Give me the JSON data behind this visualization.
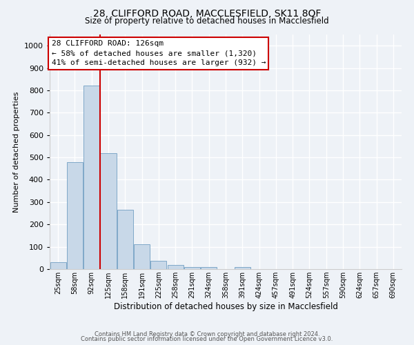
{
  "title1": "28, CLIFFORD ROAD, MACCLESFIELD, SK11 8QF",
  "title2": "Size of property relative to detached houses in Macclesfield",
  "xlabel": "Distribution of detached houses by size in Macclesfield",
  "ylabel": "Number of detached properties",
  "bar_labels": [
    "25sqm",
    "58sqm",
    "92sqm",
    "125sqm",
    "158sqm",
    "191sqm",
    "225sqm",
    "258sqm",
    "291sqm",
    "324sqm",
    "358sqm",
    "391sqm",
    "424sqm",
    "457sqm",
    "491sqm",
    "524sqm",
    "557sqm",
    "590sqm",
    "624sqm",
    "657sqm",
    "690sqm"
  ],
  "bar_values": [
    30,
    480,
    820,
    520,
    265,
    110,
    38,
    18,
    10,
    8,
    0,
    8,
    0,
    0,
    0,
    0,
    0,
    0,
    0,
    0,
    0
  ],
  "bar_color": "#c8d8e8",
  "bar_edgecolor": "#7fa8c8",
  "vline_x": 2.5,
  "annotation_title": "28 CLIFFORD ROAD: 126sqm",
  "annotation_line1": "← 58% of detached houses are smaller (1,320)",
  "annotation_line2": "41% of semi-detached houses are larger (932) →",
  "annotation_box_color": "#ffffff",
  "annotation_box_edgecolor": "#cc0000",
  "vline_color": "#cc0000",
  "ylim": [
    0,
    1050
  ],
  "yticks": [
    0,
    100,
    200,
    300,
    400,
    500,
    600,
    700,
    800,
    900,
    1000
  ],
  "footer1": "Contains HM Land Registry data © Crown copyright and database right 2024.",
  "footer2": "Contains public sector information licensed under the Open Government Licence v3.0.",
  "bg_color": "#eef2f7"
}
